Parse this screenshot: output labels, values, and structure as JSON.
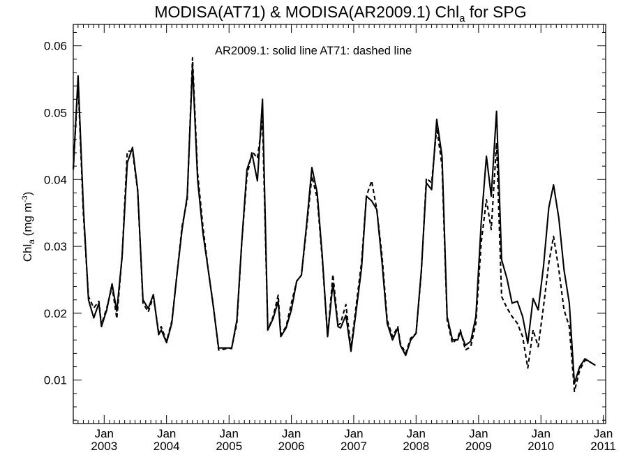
{
  "chart_data": {
    "type": "line",
    "title": {
      "main": "MODISA(AT71) & MODISA(AR2009.1)  Chl",
      "sub": "a",
      "tail": " for SPG"
    },
    "ylabel": {
      "main": "Chl",
      "sub": "a",
      "unit": " (mg m",
      "sup": "-3",
      "close": ")"
    },
    "annotation": "AR2009.1: solid line   AT71: dashed line",
    "ylim": [
      0.0035,
      0.0632
    ],
    "yticks": [
      "0.01",
      "0.02",
      "0.03",
      "0.04",
      "0.05",
      "0.06"
    ],
    "xlim": [
      "2002-07-04",
      "2011-01-15"
    ],
    "xticks": [
      {
        "month": "Jan",
        "year": "2003",
        "date": "2003-01-01"
      },
      {
        "month": "Jan",
        "year": "2004",
        "date": "2004-01-01"
      },
      {
        "month": "Jan",
        "year": "2005",
        "date": "2005-01-01"
      },
      {
        "month": "Jan",
        "year": "2006",
        "date": "2006-01-01"
      },
      {
        "month": "Jan",
        "year": "2007",
        "date": "2007-01-01"
      },
      {
        "month": "Jan",
        "year": "2008",
        "date": "2008-01-01"
      },
      {
        "month": "Jan",
        "year": "2009",
        "date": "2009-01-01"
      },
      {
        "month": "Jan",
        "year": "2010",
        "date": "2010-01-01"
      },
      {
        "month": "Jan",
        "year": "2011",
        "date": "2011-01-01"
      }
    ],
    "grid": false,
    "legend": "none",
    "series": [
      {
        "name": "AR2009.1",
        "style": "solid",
        "color": "#000000",
        "points": [
          [
            "2002-07-04",
            0.0415
          ],
          [
            "2002-08-01",
            0.0555
          ],
          [
            "2002-09-01",
            0.036
          ],
          [
            "2002-10-01",
            0.022
          ],
          [
            "2002-11-01",
            0.0193
          ],
          [
            "2002-12-01",
            0.0215
          ],
          [
            "2002-12-16",
            0.018
          ],
          [
            "2003-01-16",
            0.0205
          ],
          [
            "2003-02-16",
            0.0244
          ],
          [
            "2003-03-16",
            0.0203
          ],
          [
            "2003-04-16",
            0.0285
          ],
          [
            "2003-05-16",
            0.0425
          ],
          [
            "2003-06-16",
            0.0448
          ],
          [
            "2003-07-16",
            0.0385
          ],
          [
            "2003-08-16",
            0.022
          ],
          [
            "2003-09-16",
            0.0207
          ],
          [
            "2003-10-16",
            0.0228
          ],
          [
            "2003-11-16",
            0.0168
          ],
          [
            "2003-12-01",
            0.0175
          ],
          [
            "2004-01-01",
            0.0156
          ],
          [
            "2004-02-01",
            0.0185
          ],
          [
            "2004-03-01",
            0.0255
          ],
          [
            "2004-04-01",
            0.0325
          ],
          [
            "2004-05-01",
            0.0375
          ],
          [
            "2004-06-01",
            0.057
          ],
          [
            "2004-07-01",
            0.04
          ],
          [
            "2004-08-01",
            0.032
          ],
          [
            "2004-09-01",
            0.0265
          ],
          [
            "2004-10-01",
            0.021
          ],
          [
            "2004-11-01",
            0.0148
          ],
          [
            "2004-12-01",
            0.0148
          ],
          [
            "2005-01-01",
            0.0148
          ],
          [
            "2005-01-16",
            0.0147
          ],
          [
            "2005-02-16",
            0.019
          ],
          [
            "2005-03-16",
            0.0305
          ],
          [
            "2005-04-16",
            0.0415
          ],
          [
            "2005-05-16",
            0.0438
          ],
          [
            "2005-06-16",
            0.0398
          ],
          [
            "2005-07-16",
            0.052
          ],
          [
            "2005-08-16",
            0.0175
          ],
          [
            "2005-09-16",
            0.0192
          ],
          [
            "2005-10-16",
            0.0218
          ],
          [
            "2005-10-31",
            0.0165
          ],
          [
            "2005-12-01",
            0.0178
          ],
          [
            "2006-01-01",
            0.0205
          ],
          [
            "2006-02-01",
            0.0248
          ],
          [
            "2006-03-01",
            0.0257
          ],
          [
            "2006-04-01",
            0.0335
          ],
          [
            "2006-05-01",
            0.0418
          ],
          [
            "2006-06-01",
            0.038
          ],
          [
            "2006-07-01",
            0.0285
          ],
          [
            "2006-08-01",
            0.0165
          ],
          [
            "2006-09-01",
            0.0245
          ],
          [
            "2006-10-01",
            0.018
          ],
          [
            "2006-10-16",
            0.0178
          ],
          [
            "2006-11-16",
            0.0197
          ],
          [
            "2006-12-16",
            0.0143
          ],
          [
            "2007-01-16",
            0.0205
          ],
          [
            "2007-02-16",
            0.0268
          ],
          [
            "2007-03-16",
            0.0375
          ],
          [
            "2007-04-16",
            0.0368
          ],
          [
            "2007-05-16",
            0.0355
          ],
          [
            "2007-06-16",
            0.0275
          ],
          [
            "2007-07-16",
            0.0185
          ],
          [
            "2007-08-16",
            0.016
          ],
          [
            "2007-09-16",
            0.0178
          ],
          [
            "2007-10-01",
            0.0152
          ],
          [
            "2007-11-01",
            0.0137
          ],
          [
            "2007-12-01",
            0.016
          ],
          [
            "2008-01-01",
            0.017
          ],
          [
            "2008-02-01",
            0.0265
          ],
          [
            "2008-03-01",
            0.0395
          ],
          [
            "2008-04-01",
            0.0385
          ],
          [
            "2008-05-01",
            0.049
          ],
          [
            "2008-06-01",
            0.0435
          ],
          [
            "2008-07-01",
            0.0195
          ],
          [
            "2008-08-01",
            0.016
          ],
          [
            "2008-09-01",
            0.016
          ],
          [
            "2008-09-16",
            0.0172
          ],
          [
            "2008-10-16",
            0.0152
          ],
          [
            "2008-11-16",
            0.0158
          ],
          [
            "2008-12-16",
            0.0195
          ],
          [
            "2009-01-16",
            0.0335
          ],
          [
            "2009-02-16",
            0.0435
          ],
          [
            "2009-03-16",
            0.0375
          ],
          [
            "2009-04-16",
            0.0502
          ],
          [
            "2009-05-16",
            0.028
          ],
          [
            "2009-06-16",
            0.0252
          ],
          [
            "2009-07-16",
            0.0215
          ],
          [
            "2009-08-16",
            0.0218
          ],
          [
            "2009-09-16",
            0.0195
          ],
          [
            "2009-10-16",
            0.0155
          ],
          [
            "2009-11-16",
            0.0222
          ],
          [
            "2009-12-16",
            0.0205
          ],
          [
            "2010-01-16",
            0.027
          ],
          [
            "2010-02-16",
            0.0358
          ],
          [
            "2010-03-16",
            0.0392
          ],
          [
            "2010-04-16",
            0.0342
          ],
          [
            "2010-05-16",
            0.0265
          ],
          [
            "2010-06-16",
            0.0215
          ],
          [
            "2010-07-16",
            0.0095
          ],
          [
            "2010-08-16",
            0.012
          ],
          [
            "2010-09-16",
            0.0132
          ],
          [
            "2010-10-16",
            0.0127
          ],
          [
            "2010-11-16",
            0.0122
          ]
        ]
      },
      {
        "name": "AT71",
        "style": "dashed",
        "color": "#000000",
        "points": [
          [
            "2002-07-04",
            0.0415
          ],
          [
            "2002-08-01",
            0.0545
          ],
          [
            "2002-09-01",
            0.035
          ],
          [
            "2002-10-01",
            0.0225
          ],
          [
            "2002-11-01",
            0.0208
          ],
          [
            "2002-12-01",
            0.0218
          ],
          [
            "2002-12-16",
            0.0183
          ],
          [
            "2003-01-16",
            0.0208
          ],
          [
            "2003-02-16",
            0.024
          ],
          [
            "2003-03-16",
            0.0192
          ],
          [
            "2003-04-16",
            0.0285
          ],
          [
            "2003-05-16",
            0.0442
          ],
          [
            "2003-06-16",
            0.0443
          ],
          [
            "2003-07-16",
            0.0383
          ],
          [
            "2003-08-16",
            0.0215
          ],
          [
            "2003-09-16",
            0.0202
          ],
          [
            "2003-10-16",
            0.0225
          ],
          [
            "2003-11-16",
            0.0172
          ],
          [
            "2003-12-01",
            0.018
          ],
          [
            "2004-01-01",
            0.0158
          ],
          [
            "2004-02-01",
            0.0188
          ],
          [
            "2004-03-01",
            0.0255
          ],
          [
            "2004-04-01",
            0.033
          ],
          [
            "2004-05-01",
            0.037
          ],
          [
            "2004-06-01",
            0.0582
          ],
          [
            "2004-07-01",
            0.041
          ],
          [
            "2004-08-01",
            0.033
          ],
          [
            "2004-09-01",
            0.0265
          ],
          [
            "2004-10-01",
            0.0212
          ],
          [
            "2004-11-01",
            0.0145
          ],
          [
            "2004-12-01",
            0.0146
          ],
          [
            "2005-01-01",
            0.0148
          ],
          [
            "2005-01-16",
            0.0148
          ],
          [
            "2005-02-16",
            0.0185
          ],
          [
            "2005-03-16",
            0.0305
          ],
          [
            "2005-04-16",
            0.0405
          ],
          [
            "2005-05-16",
            0.0442
          ],
          [
            "2005-06-16",
            0.0432
          ],
          [
            "2005-07-16",
            0.0488
          ],
          [
            "2005-08-16",
            0.0175
          ],
          [
            "2005-09-16",
            0.0195
          ],
          [
            "2005-10-16",
            0.0227
          ],
          [
            "2005-10-31",
            0.0168
          ],
          [
            "2005-12-01",
            0.018
          ],
          [
            "2006-01-01",
            0.0215
          ],
          [
            "2006-02-01",
            0.0248
          ],
          [
            "2006-03-01",
            0.0257
          ],
          [
            "2006-04-01",
            0.033
          ],
          [
            "2006-05-01",
            0.0405
          ],
          [
            "2006-06-01",
            0.0372
          ],
          [
            "2006-07-01",
            0.028
          ],
          [
            "2006-08-01",
            0.0165
          ],
          [
            "2006-09-01",
            0.0258
          ],
          [
            "2006-10-01",
            0.0182
          ],
          [
            "2006-10-16",
            0.0185
          ],
          [
            "2006-11-16",
            0.0213
          ],
          [
            "2006-12-16",
            0.0148
          ],
          [
            "2007-01-16",
            0.0213
          ],
          [
            "2007-02-16",
            0.0277
          ],
          [
            "2007-03-16",
            0.0375
          ],
          [
            "2007-04-16",
            0.0398
          ],
          [
            "2007-05-16",
            0.0355
          ],
          [
            "2007-06-16",
            0.0285
          ],
          [
            "2007-07-16",
            0.019
          ],
          [
            "2007-08-16",
            0.0165
          ],
          [
            "2007-09-16",
            0.018
          ],
          [
            "2007-10-01",
            0.0155
          ],
          [
            "2007-11-01",
            0.014
          ],
          [
            "2007-12-01",
            0.0163
          ],
          [
            "2008-01-01",
            0.017
          ],
          [
            "2008-02-01",
            0.0262
          ],
          [
            "2008-03-01",
            0.0402
          ],
          [
            "2008-04-01",
            0.0395
          ],
          [
            "2008-05-01",
            0.0478
          ],
          [
            "2008-06-01",
            0.042
          ],
          [
            "2008-07-01",
            0.019
          ],
          [
            "2008-08-01",
            0.0155
          ],
          [
            "2008-09-01",
            0.0163
          ],
          [
            "2008-09-16",
            0.0175
          ],
          [
            "2008-10-16",
            0.0145
          ],
          [
            "2008-11-16",
            0.015
          ],
          [
            "2008-12-16",
            0.0185
          ],
          [
            "2009-01-16",
            0.0305
          ],
          [
            "2009-02-16",
            0.037
          ],
          [
            "2009-03-16",
            0.0325
          ],
          [
            "2009-04-16",
            0.0455
          ],
          [
            "2009-05-16",
            0.0225
          ],
          [
            "2009-06-16",
            0.0208
          ],
          [
            "2009-07-16",
            0.0195
          ],
          [
            "2009-08-16",
            0.0185
          ],
          [
            "2009-09-16",
            0.0165
          ],
          [
            "2009-10-16",
            0.0118
          ],
          [
            "2009-11-16",
            0.0175
          ],
          [
            "2009-12-16",
            0.015
          ],
          [
            "2010-01-16",
            0.021
          ],
          [
            "2010-02-16",
            0.0275
          ],
          [
            "2010-03-16",
            0.0315
          ],
          [
            "2010-04-16",
            0.0265
          ],
          [
            "2010-05-16",
            0.0205
          ],
          [
            "2010-06-16",
            0.018
          ],
          [
            "2010-07-16",
            0.0083
          ],
          [
            "2010-08-16",
            0.0115
          ],
          [
            "2010-09-16",
            0.013
          ],
          [
            "2010-10-16",
            0.0127
          ],
          [
            "2010-11-16",
            0.0122
          ]
        ]
      }
    ]
  }
}
